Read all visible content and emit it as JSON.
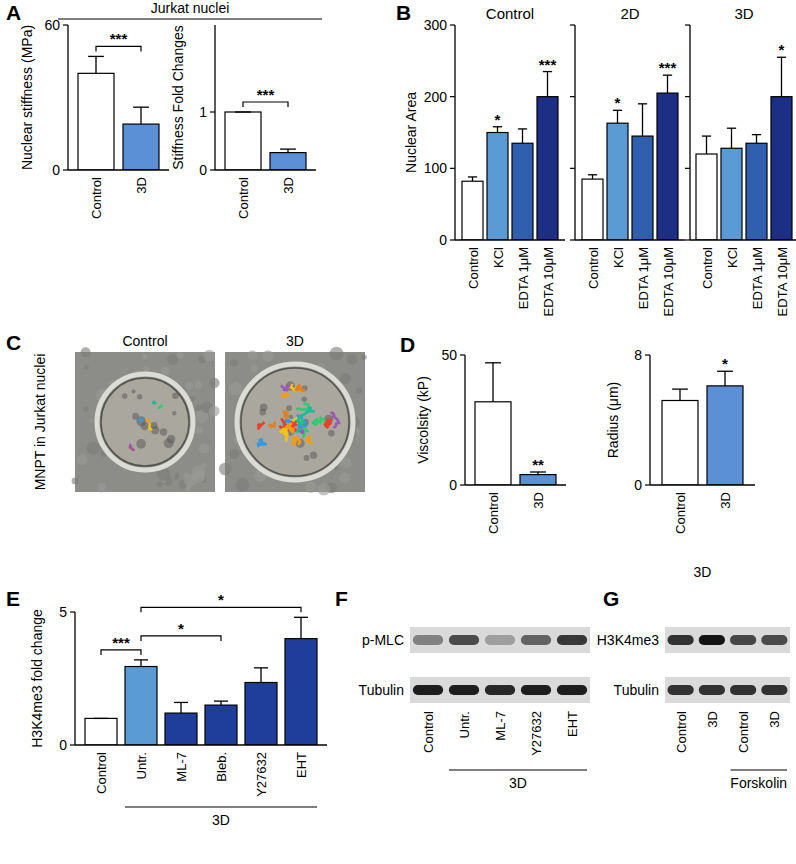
{
  "chart_data": [
    {
      "panel": "A",
      "group_title": "Jurkat nuclei",
      "type": "bar",
      "ylabel": "Nuclear stiffness (MPa)",
      "categories": [
        "Control",
        "3D"
      ],
      "values": [
        40,
        19
      ],
      "errors": [
        7,
        7
      ],
      "colors": [
        "#ffffff",
        "#5b8fd6"
      ],
      "ylim": [
        0,
        60
      ],
      "yticks": [
        0,
        60
      ],
      "comparisons": [
        {
          "bars": [
            0,
            1
          ],
          "label": "***"
        }
      ]
    },
    {
      "type": "bar",
      "ylabel": "Stiffness Fold Changes",
      "categories": [
        "Control",
        "3D"
      ],
      "values": [
        1,
        0.3
      ],
      "errors": [
        0,
        0.06
      ],
      "colors": [
        "#ffffff",
        "#5b8fd6"
      ],
      "ylim": [
        0,
        2.5
      ],
      "yticks": [
        0,
        1
      ],
      "comparisons": [
        {
          "bars": [
            0,
            1
          ],
          "label": "***"
        }
      ]
    },
    {
      "panel": "B",
      "type": "bar",
      "title": "Control",
      "ylabel": "Nuclear Area",
      "categories": [
        "Control",
        "KCl",
        "EDTA 1μM",
        "EDTA 10μM"
      ],
      "values": [
        82,
        150,
        135,
        200
      ],
      "errors": [
        6,
        8,
        20,
        35
      ],
      "significance": [
        null,
        "*",
        null,
        "***"
      ],
      "colors": [
        "#ffffff",
        "#5b9bd5",
        "#2f5fae",
        "#1c2f85"
      ],
      "ylim": [
        0,
        300
      ],
      "yticks": [
        0,
        100,
        200,
        300
      ]
    },
    {
      "type": "bar",
      "title": "2D",
      "tick_labels": "x",
      "categories": [
        "Control",
        "KCl",
        "EDTA 1μM",
        "EDTA 10μM"
      ],
      "values": [
        85,
        163,
        145,
        205
      ],
      "errors": [
        6,
        18,
        45,
        25
      ],
      "significance": [
        null,
        "*",
        null,
        "***"
      ],
      "colors": [
        "#ffffff",
        "#5b9bd5",
        "#2f5fae",
        "#1c2f85"
      ],
      "ylim": [
        0,
        300
      ],
      "yticks": [
        0,
        100,
        200,
        300
      ]
    },
    {
      "type": "bar",
      "title": "3D",
      "tick_labels": "x",
      "categories": [
        "Control",
        "KCl",
        "EDTA 1μM",
        "EDTA 10μM"
      ],
      "values": [
        120,
        128,
        135,
        200
      ],
      "errors": [
        25,
        28,
        12,
        55
      ],
      "significance": [
        null,
        null,
        null,
        "*"
      ],
      "colors": [
        "#ffffff",
        "#5b9bd5",
        "#2f5fae",
        "#1c2f85"
      ],
      "ylim": [
        0,
        300
      ],
      "yticks": [
        0,
        100,
        200,
        300
      ]
    },
    {
      "panel": "D",
      "type": "bar",
      "ylabel": "Viscolsity (kP)",
      "categories": [
        "Control",
        "3D"
      ],
      "values": [
        32,
        4
      ],
      "errors": [
        15,
        1
      ],
      "significance": [
        null,
        "**"
      ],
      "colors": [
        "#ffffff",
        "#5b8fd6"
      ],
      "ylim": [
        0,
        50
      ],
      "yticks": [
        0,
        50
      ]
    },
    {
      "type": "bar",
      "ylabel": "Radius (μm)",
      "xlabel": "3D",
      "categories": [
        "Control",
        "3D"
      ],
      "values": [
        5.2,
        6.1
      ],
      "errors": [
        0.7,
        0.9
      ],
      "significance": [
        null,
        "*"
      ],
      "colors": [
        "#ffffff",
        "#5b8fd6"
      ],
      "ylim": [
        0,
        8
      ],
      "yticks": [
        0,
        8
      ]
    },
    {
      "panel": "E",
      "type": "bar",
      "ylabel": "H3K4me3 fold change",
      "categories": [
        "Control",
        "Untr.",
        "ML-7",
        "Bleb.",
        "Y27632",
        "EHT"
      ],
      "values": [
        1,
        2.95,
        1.2,
        1.5,
        2.35,
        4
      ],
      "errors": [
        0,
        0.25,
        0.4,
        0.15,
        0.55,
        0.8
      ],
      "colors": [
        "#ffffff",
        "#5b9bd5",
        "#1f3d9a",
        "#1f3d9a",
        "#1f3d9a",
        "#1f3d9a"
      ],
      "ylim": [
        0,
        5
      ],
      "yticks": [
        0,
        5
      ],
      "group_label": {
        "text": "3D",
        "from": 1,
        "to": 5
      },
      "comparisons": [
        {
          "bars": [
            0,
            1
          ],
          "label": "***"
        },
        {
          "bars": [
            1,
            3
          ],
          "label": "*"
        },
        {
          "bars": [
            1,
            5
          ],
          "label": "*"
        }
      ]
    }
  ],
  "images": {
    "panel": "C",
    "side_label": "MNPT in Jurkat nuclei",
    "titles": [
      "Control",
      "3D"
    ]
  },
  "blots": [
    {
      "panel": "F",
      "rows": [
        "p-MLC",
        "Tubulin"
      ],
      "lanes": [
        "Control",
        "Untr.",
        "ML-7",
        "Y27632",
        "EHT"
      ],
      "group": {
        "label": "3D",
        "from": 1,
        "to": 4
      }
    },
    {
      "panel": "G",
      "rows": [
        "H3K4me3",
        "Tubulin"
      ],
      "lanes": [
        "Control",
        "3D",
        "Control",
        "3D"
      ],
      "group": {
        "label": "Forskolin",
        "from": 2,
        "to": 3
      }
    }
  ]
}
